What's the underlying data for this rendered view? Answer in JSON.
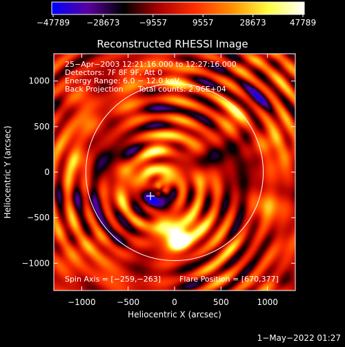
{
  "chart_data": {
    "type": "heatmap",
    "title": "Reconstructed RHESSI Image",
    "xlabel": "Heliocentric X (arcsec)",
    "ylabel": "Heliocentric Y (arcsec)",
    "xlim": [
      -1300,
      1300
    ],
    "ylim": [
      -1300,
      1300
    ],
    "xticks": [
      -1000,
      -500,
      0,
      500,
      1000
    ],
    "yticks": [
      -1000,
      -500,
      0,
      500,
      1000
    ],
    "xtick_labels": [
      "−1000",
      "−500",
      "0",
      "500",
      "1000"
    ],
    "ytick_labels": [
      "−1000",
      "−500",
      "0",
      "500",
      "1000"
    ],
    "colorbar": {
      "min": -47789,
      "max": 47789,
      "tick_labels": [
        "−47789",
        "−28673",
        "−9557",
        "9557",
        "28673",
        "47789"
      ],
      "stops": [
        "#0000ff",
        "#5a00a0",
        "#000000",
        "#b00000",
        "#ff3000",
        "#ff9000",
        "#ffff40",
        "#ffffff"
      ]
    },
    "annotations": [
      "25−Apr−2003 12:21:16.000 to 12:27:16.000",
      "Detectors: 7F 8F 9F, Att 0",
      "Energy Range: 6.0 − 12.0 keV",
      "Back Projection",
      "Total counts: 2.96E+04",
      "Spin Axis = [−259,−263]",
      "Flare Position = [670,377]"
    ],
    "spin_axis": [
      -259,
      -263
    ],
    "flare_position": [
      670,
      377
    ],
    "solar_limb_radius_arcsec": 955,
    "peak": {
      "x": 50,
      "y": -750,
      "value": 47789
    },
    "blobs": [
      {
        "x": 50,
        "y": -750,
        "v": 1.0,
        "s": 70
      },
      {
        "x": 20,
        "y": -710,
        "v": 0.8,
        "s": 110
      },
      {
        "x": -150,
        "y": -560,
        "v": 0.55,
        "s": 85
      },
      {
        "x": -380,
        "y": -560,
        "v": 0.45,
        "s": 80
      },
      {
        "x": 220,
        "y": -560,
        "v": 0.5,
        "s": 90
      },
      {
        "x": -280,
        "y": -150,
        "v": 0.55,
        "s": 85
      },
      {
        "x": -420,
        "y": -100,
        "v": 0.45,
        "s": 70
      },
      {
        "x": -100,
        "y": -50,
        "v": 0.5,
        "s": 90
      },
      {
        "x": -320,
        "y": 70,
        "v": 0.5,
        "s": 85
      },
      {
        "x": -550,
        "y": 30,
        "v": 0.45,
        "s": 75
      },
      {
        "x": 300,
        "y": -50,
        "v": 0.45,
        "s": 90
      },
      {
        "x": -200,
        "y": 320,
        "v": 0.45,
        "s": 110
      },
      {
        "x": 200,
        "y": 300,
        "v": 0.4,
        "s": 100
      },
      {
        "x": 250,
        "y": -330,
        "v": 0.35,
        "s": 80
      },
      {
        "x": -600,
        "y": -350,
        "v": 0.35,
        "s": 80
      },
      {
        "x": -1050,
        "y": 150,
        "v": 0.5,
        "s": 100
      },
      {
        "x": -900,
        "y": 550,
        "v": 0.45,
        "s": 100
      },
      {
        "x": 650,
        "y": 580,
        "v": 0.45,
        "s": 110
      },
      {
        "x": 550,
        "y": -800,
        "v": 0.35,
        "s": 100
      },
      {
        "x": -800,
        "y": -900,
        "v": 0.4,
        "s": 110
      },
      {
        "x": 950,
        "y": -400,
        "v": 0.4,
        "s": 100
      },
      {
        "x": 1050,
        "y": 300,
        "v": 0.35,
        "s": 100
      },
      {
        "x": 0,
        "y": 1050,
        "v": 0.35,
        "s": 110
      },
      {
        "x": -500,
        "y": 900,
        "v": 0.3,
        "s": 110
      },
      {
        "x": -200,
        "y": -260,
        "v": -0.55,
        "s": 110
      },
      {
        "x": -350,
        "y": -300,
        "v": -0.5,
        "s": 80
      },
      {
        "x": -100,
        "y": -380,
        "v": -0.45,
        "s": 85
      },
      {
        "x": -450,
        "y": 200,
        "v": -0.4,
        "s": 100
      },
      {
        "x": -650,
        "y": -600,
        "v": -0.35,
        "s": 110
      },
      {
        "x": 100,
        "y": 150,
        "v": -0.35,
        "s": 100
      },
      {
        "x": 350,
        "y": 180,
        "v": -0.35,
        "s": 110
      },
      {
        "x": 600,
        "y": -250,
        "v": -0.4,
        "s": 110
      },
      {
        "x": -200,
        "y": 550,
        "v": -0.3,
        "s": 120
      },
      {
        "x": 100,
        "y": -950,
        "v": -0.3,
        "s": 120
      },
      {
        "x": 700,
        "y": 150,
        "v": -0.3,
        "s": 110
      },
      {
        "x": -800,
        "y": 150,
        "v": -0.35,
        "s": 110
      },
      {
        "x": 900,
        "y": 800,
        "v": -0.3,
        "s": 120
      },
      {
        "x": -1000,
        "y": -300,
        "v": -0.3,
        "s": 120
      }
    ],
    "ripple": {
      "cx": -150,
      "cy": -200,
      "wavelength": 190,
      "amp": 0.45
    }
  },
  "footer": {
    "timestamp": "1−May−2022 01:27"
  }
}
